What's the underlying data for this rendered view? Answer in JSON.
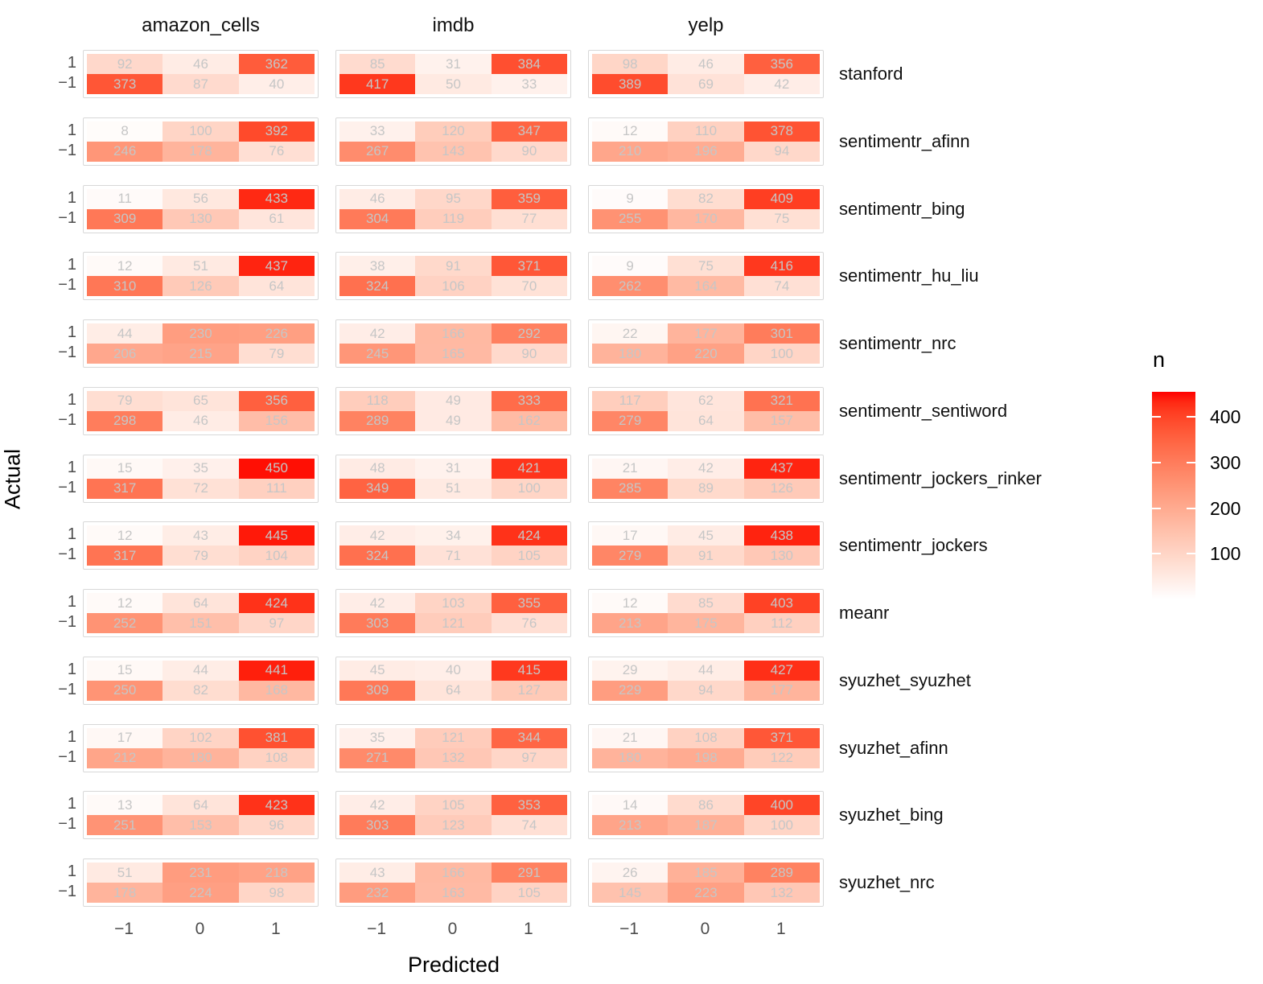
{
  "axes": {
    "x_title": "Predicted",
    "y_title": "Actual",
    "x_tick_labels": [
      "−1",
      "0",
      "1"
    ],
    "y_tick_labels": [
      "1",
      "−1"
    ]
  },
  "legend": {
    "title": "n",
    "ticks": [
      400,
      300,
      200,
      100
    ],
    "domain_max": 455,
    "low_color": "#FFFFFF",
    "high_color": "#FF0000"
  },
  "colors": {
    "cell_text": "#c6c6c6",
    "tick_text": "#4d4d4d",
    "panel_border": "#d8d8d8"
  },
  "chart_data": {
    "type": "heatmap",
    "title": "",
    "xlabel": "Predicted",
    "ylabel": "Actual",
    "fill_label": "n",
    "facet_columns": [
      "amazon_cells",
      "imdb",
      "yelp"
    ],
    "predicted_levels": [
      -1,
      0,
      1
    ],
    "actual_levels": [
      1,
      -1
    ],
    "fill_scale": {
      "low": "#FFFFFF",
      "high": "#FF0000",
      "legend_ticks": [
        100,
        200,
        300,
        400
      ]
    },
    "rows": [
      {
        "label": "stanford",
        "matrices": [
          [
            [
              92,
              46,
              362
            ],
            [
              373,
              87,
              40
            ]
          ],
          [
            [
              85,
              31,
              384
            ],
            [
              417,
              50,
              33
            ]
          ],
          [
            [
              98,
              46,
              356
            ],
            [
              389,
              69,
              42
            ]
          ]
        ]
      },
      {
        "label": "sentimentr_afinn",
        "matrices": [
          [
            [
              8,
              100,
              392
            ],
            [
              246,
              178,
              76
            ]
          ],
          [
            [
              33,
              120,
              347
            ],
            [
              267,
              143,
              90
            ]
          ],
          [
            [
              12,
              110,
              378
            ],
            [
              210,
              196,
              94
            ]
          ]
        ]
      },
      {
        "label": "sentimentr_bing",
        "matrices": [
          [
            [
              11,
              56,
              433
            ],
            [
              309,
              130,
              61
            ]
          ],
          [
            [
              46,
              95,
              359
            ],
            [
              304,
              119,
              77
            ]
          ],
          [
            [
              9,
              82,
              409
            ],
            [
              255,
              170,
              75
            ]
          ]
        ]
      },
      {
        "label": "sentimentr_hu_liu",
        "matrices": [
          [
            [
              12,
              51,
              437
            ],
            [
              310,
              126,
              64
            ]
          ],
          [
            [
              38,
              91,
              371
            ],
            [
              324,
              106,
              70
            ]
          ],
          [
            [
              9,
              75,
              416
            ],
            [
              262,
              164,
              74
            ]
          ]
        ]
      },
      {
        "label": "sentimentr_nrc",
        "matrices": [
          [
            [
              44,
              230,
              226
            ],
            [
              206,
              215,
              79
            ]
          ],
          [
            [
              42,
              166,
              292
            ],
            [
              245,
              165,
              90
            ]
          ],
          [
            [
              22,
              177,
              301
            ],
            [
              180,
              220,
              100
            ]
          ]
        ]
      },
      {
        "label": "sentimentr_sentiword",
        "matrices": [
          [
            [
              79,
              65,
              356
            ],
            [
              298,
              46,
              156
            ]
          ],
          [
            [
              118,
              49,
              333
            ],
            [
              289,
              49,
              162
            ]
          ],
          [
            [
              117,
              62,
              321
            ],
            [
              279,
              64,
              157
            ]
          ]
        ]
      },
      {
        "label": "sentimentr_jockers_rinker",
        "matrices": [
          [
            [
              15,
              35,
              450
            ],
            [
              317,
              72,
              111
            ]
          ],
          [
            [
              48,
              31,
              421
            ],
            [
              349,
              51,
              100
            ]
          ],
          [
            [
              21,
              42,
              437
            ],
            [
              285,
              89,
              126
            ]
          ]
        ]
      },
      {
        "label": "sentimentr_jockers",
        "matrices": [
          [
            [
              12,
              43,
              445
            ],
            [
              317,
              79,
              104
            ]
          ],
          [
            [
              42,
              34,
              424
            ],
            [
              324,
              71,
              105
            ]
          ],
          [
            [
              17,
              45,
              438
            ],
            [
              279,
              91,
              130
            ]
          ]
        ]
      },
      {
        "label": "meanr",
        "matrices": [
          [
            [
              12,
              64,
              424
            ],
            [
              252,
              151,
              97
            ]
          ],
          [
            [
              42,
              103,
              355
            ],
            [
              303,
              121,
              76
            ]
          ],
          [
            [
              12,
              85,
              403
            ],
            [
              213,
              175,
              112
            ]
          ]
        ]
      },
      {
        "label": "syuzhet_syuzhet",
        "matrices": [
          [
            [
              15,
              44,
              441
            ],
            [
              250,
              82,
              168
            ]
          ],
          [
            [
              45,
              40,
              415
            ],
            [
              309,
              64,
              127
            ]
          ],
          [
            [
              29,
              44,
              427
            ],
            [
              229,
              94,
              177
            ]
          ]
        ]
      },
      {
        "label": "syuzhet_afinn",
        "matrices": [
          [
            [
              17,
              102,
              381
            ],
            [
              212,
              180,
              108
            ]
          ],
          [
            [
              35,
              121,
              344
            ],
            [
              271,
              132,
              97
            ]
          ],
          [
            [
              21,
              108,
              371
            ],
            [
              180,
              198,
              122
            ]
          ]
        ]
      },
      {
        "label": "syuzhet_bing",
        "matrices": [
          [
            [
              13,
              64,
              423
            ],
            [
              251,
              153,
              96
            ]
          ],
          [
            [
              42,
              105,
              353
            ],
            [
              303,
              123,
              74
            ]
          ],
          [
            [
              14,
              86,
              400
            ],
            [
              213,
              187,
              100
            ]
          ]
        ]
      },
      {
        "label": "syuzhet_nrc",
        "matrices": [
          [
            [
              51,
              231,
              218
            ],
            [
              178,
              224,
              98
            ]
          ],
          [
            [
              43,
              166,
              291
            ],
            [
              232,
              163,
              105
            ]
          ],
          [
            [
              26,
              185,
              289
            ],
            [
              145,
              223,
              132
            ]
          ]
        ]
      }
    ]
  }
}
